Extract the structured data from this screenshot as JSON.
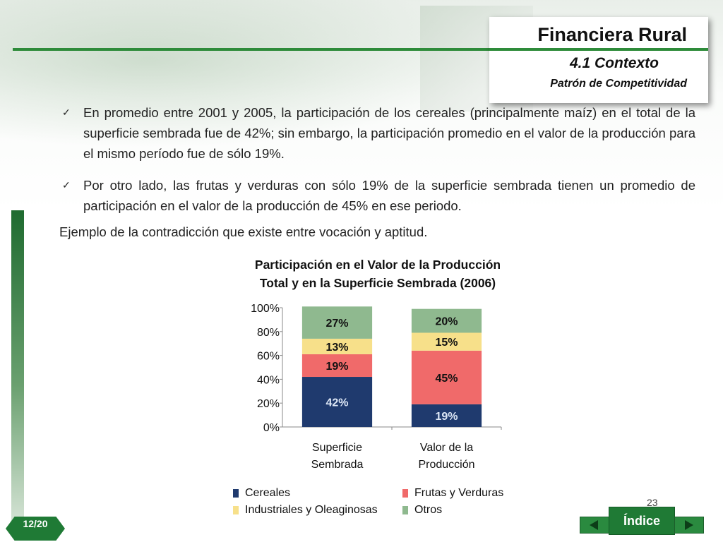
{
  "header": {
    "title": "Financiera Rural",
    "section": "4.1 Contexto",
    "subsection": "Patrón de Competitividad"
  },
  "bullets": [
    "En promedio entre 2001 y 2005, la participación de los cereales (principalmente maíz) en el total de la superficie sembrada fue de 42%; sin embargo, la participación promedio en el valor de la producción para el mismo período fue de sólo 19%.",
    "Por otro lado, las frutas y verduras con sólo 19% de la superficie sembrada tienen un promedio de participación en el valor de la producción de 45% en ese periodo."
  ],
  "bullet_icon": "check-icon",
  "example_text": "Ejemplo de la contradicción que existe entre vocación y aptitud.",
  "chart_data": {
    "type": "bar",
    "stacked": true,
    "title_line1": "Participación en el Valor de la Producción",
    "title_line2": "Total y en la Superficie Sembrada (2006)",
    "categories": [
      [
        "Superficie",
        "Sembrada"
      ],
      [
        "Valor de la",
        "Producción"
      ]
    ],
    "yticks": [
      "0%",
      "20%",
      "40%",
      "60%",
      "80%",
      "100%"
    ],
    "ylim": [
      0,
      100
    ],
    "series": [
      {
        "name": "Cereales",
        "values": [
          42,
          19
        ],
        "labels": [
          "42%",
          "19%"
        ],
        "color": "#1f3a6e",
        "label_color": "#dce6f5"
      },
      {
        "name": "Frutas y Verduras",
        "values": [
          19,
          45
        ],
        "labels": [
          "19%",
          "45%"
        ],
        "color": "#f06a6a",
        "label_color": "#111111"
      },
      {
        "name": "Industriales y Oleaginosas",
        "values": [
          13,
          15
        ],
        "labels": [
          "13%",
          "15%"
        ],
        "color": "#f7e08a",
        "label_color": "#111111"
      },
      {
        "name": "Otros",
        "values": [
          27,
          20
        ],
        "labels": [
          "27%",
          "20%"
        ],
        "color": "#8fb98f",
        "label_color": "#111111"
      }
    ],
    "legend_position": "bottom"
  },
  "footer": {
    "page_tag": "12/20",
    "slide_number": "23",
    "index_label": "Índice",
    "prev_icon": "arrow-left-icon",
    "next_icon": "arrow-right-icon"
  },
  "colors": {
    "accent_green": "#2e8b3a",
    "dark_green": "#1f7a35"
  }
}
